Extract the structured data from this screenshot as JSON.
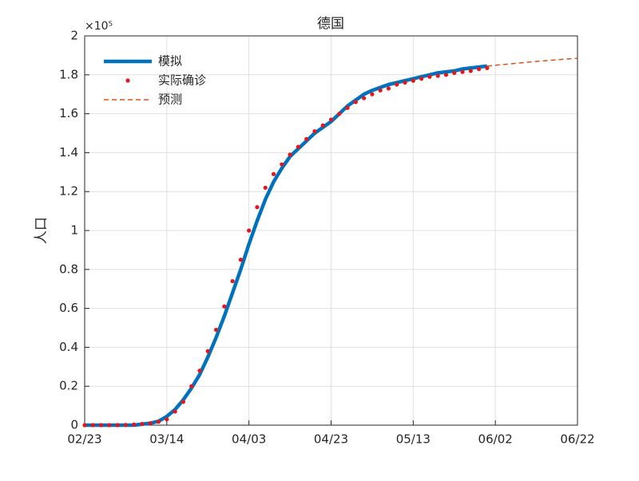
{
  "chart_data": {
    "type": "line",
    "title": "德国",
    "ylabel": "人口",
    "y_multiplier": "×10⁵",
    "xlim": [
      "02/23",
      "06/22"
    ],
    "xticks": [
      "02/23",
      "03/14",
      "04/03",
      "04/23",
      "05/13",
      "06/02",
      "06/22"
    ],
    "ylim": [
      0,
      2
    ],
    "yticks": [
      0,
      0.2,
      0.4,
      0.6,
      0.8,
      1,
      1.2,
      1.4,
      1.6,
      1.8,
      2
    ],
    "grid": true,
    "legend": "upper-left",
    "series": [
      {
        "name": "模拟",
        "color": "#0072bd",
        "style": "line",
        "x": [
          "02/23",
          "02/25",
          "02/27",
          "02/29",
          "03/02",
          "03/04",
          "03/06",
          "03/08",
          "03/10",
          "03/12",
          "03/14",
          "03/16",
          "03/18",
          "03/20",
          "03/22",
          "03/24",
          "03/26",
          "03/28",
          "03/30",
          "04/01",
          "04/03",
          "04/05",
          "04/07",
          "04/09",
          "04/11",
          "04/13",
          "04/15",
          "04/17",
          "04/19",
          "04/21",
          "04/23",
          "04/25",
          "04/27",
          "04/29",
          "05/01",
          "05/03",
          "05/05",
          "05/07",
          "05/09",
          "05/11",
          "05/13",
          "05/15",
          "05/17",
          "05/19",
          "05/21",
          "05/23",
          "05/25",
          "05/27",
          "05/29",
          "05/31"
        ],
        "values": [
          0,
          0,
          0,
          0,
          0,
          0,
          0,
          0.005,
          0.01,
          0.02,
          0.045,
          0.08,
          0.13,
          0.19,
          0.26,
          0.35,
          0.45,
          0.56,
          0.68,
          0.8,
          0.93,
          1.05,
          1.16,
          1.25,
          1.32,
          1.38,
          1.42,
          1.46,
          1.5,
          1.53,
          1.56,
          1.6,
          1.64,
          1.67,
          1.7,
          1.72,
          1.735,
          1.75,
          1.76,
          1.77,
          1.78,
          1.79,
          1.8,
          1.81,
          1.815,
          1.82,
          1.83,
          1.835,
          1.84,
          1.845
        ]
      },
      {
        "name": "实际确诊",
        "color": "#e8141c",
        "style": "dots",
        "x": [
          "02/23",
          "02/25",
          "02/27",
          "02/29",
          "03/02",
          "03/04",
          "03/06",
          "03/08",
          "03/10",
          "03/12",
          "03/14",
          "03/16",
          "03/18",
          "03/20",
          "03/22",
          "03/24",
          "03/26",
          "03/28",
          "03/30",
          "04/01",
          "04/03",
          "04/05",
          "04/07",
          "04/09",
          "04/11",
          "04/13",
          "04/15",
          "04/17",
          "04/19",
          "04/21",
          "04/23",
          "04/25",
          "04/27",
          "04/29",
          "05/01",
          "05/03",
          "05/05",
          "05/07",
          "05/09",
          "05/11",
          "05/13",
          "05/15",
          "05/17",
          "05/19",
          "05/21",
          "05/23",
          "05/25",
          "05/27",
          "05/29",
          "05/31"
        ],
        "values": [
          0,
          0,
          0,
          0,
          0,
          0.001,
          0.003,
          0.006,
          0.01,
          0.018,
          0.03,
          0.07,
          0.12,
          0.2,
          0.28,
          0.38,
          0.49,
          0.61,
          0.74,
          0.85,
          1,
          1.12,
          1.22,
          1.29,
          1.34,
          1.39,
          1.43,
          1.47,
          1.51,
          1.54,
          1.57,
          1.6,
          1.63,
          1.66,
          1.68,
          1.7,
          1.72,
          1.73,
          1.75,
          1.76,
          1.77,
          1.78,
          1.79,
          1.795,
          1.8,
          1.81,
          1.815,
          1.82,
          1.83,
          1.835
        ]
      },
      {
        "name": "预测",
        "color": "#d95319",
        "style": "dashed",
        "x": [
          "05/31",
          "06/06",
          "06/12",
          "06/18",
          "06/22"
        ],
        "values": [
          1.845,
          1.857,
          1.869,
          1.879,
          1.885
        ]
      }
    ]
  }
}
